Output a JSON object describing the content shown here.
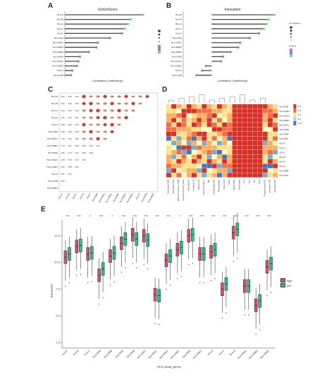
{
  "panels": {
    "A": {
      "letter": "A",
      "title": "EnrichScore",
      "xlabel": "Correlation Coefficient(r)"
    },
    "B": {
      "letter": "B",
      "title": "Innovation",
      "xlabel": "Correlation Coefficient(r)"
    },
    "C": {
      "letter": "C"
    },
    "D": {
      "letter": "D"
    },
    "E": {
      "letter": "E",
      "ylabel": "Expression",
      "xlabel": "HLA_family_genes"
    }
  },
  "legend_E": {
    "title": "",
    "items": [
      {
        "label": "high",
        "color": "#d9536b"
      },
      {
        "label": "low",
        "color": "#2bbf8f"
      }
    ]
  },
  "legend_AB": {
    "size_title": "Correlation",
    "p_title": "pvalue"
  },
  "colors": {
    "bar": "#4a4a4a",
    "tip_high": "#6ee06e",
    "tip_low": "#9a6ee0",
    "heat_high": "#d73027",
    "heat_mid": "#fee08b",
    "heat_low": "#4575b4"
  },
  "chart_data": [
    {
      "type": "bar",
      "panel": "A",
      "categories": [
        "HLA-E",
        "HLA-B",
        "HLA-A",
        "HLA-C",
        "HLA-F",
        "HLA-DRA",
        "HLA-DPA1",
        "HLA-DPB1",
        "HLA-DRB1",
        "HLA-DMA",
        "HLA-DQA1",
        "HLA-DQB1",
        "HLA-G",
        "HLA-DOB"
      ],
      "values": [
        0.52,
        0.44,
        0.42,
        0.4,
        0.38,
        0.3,
        0.22,
        0.21,
        0.16,
        0.1,
        0.09,
        0.08,
        0.05,
        0.04
      ],
      "xlim": [
        0,
        0.6
      ],
      "xticks": [
        "0.00",
        "0.25",
        "0.50"
      ]
    },
    {
      "type": "bar",
      "panel": "B",
      "categories": [
        "HLA-E",
        "HLA-B",
        "HLA-A",
        "HLA-C",
        "HLA-F",
        "HLA-DRA",
        "HLA-DPA1",
        "HLA-DPB1",
        "HLA-DRB1",
        "HLA-DMA",
        "HLA-DQA1",
        "HLA-DQB1",
        "HLA-G",
        "HLA-DOB"
      ],
      "values": [
        0.66,
        0.6,
        0.58,
        0.55,
        0.5,
        0.4,
        0.3,
        0.28,
        0.2,
        0.12,
        0.1,
        -0.06,
        -0.1,
        -0.16
      ],
      "xlim": [
        -0.3,
        0.8
      ],
      "xticks": [
        "-0.2",
        "0.0",
        "0.2",
        "0.4",
        "0.6"
      ]
    },
    {
      "type": "heatmap",
      "panel": "C",
      "rows": [
        "HLA-E",
        "HLA-B",
        "HLA-C",
        "HLA-A",
        "HLA-F",
        "HLA-DRA",
        "HLA-DPA1",
        "HLA-DRB1",
        "HLA-DMA",
        "HLA-DQA1",
        "HLA-DQB1",
        "HLA-G",
        "HLA-DOB",
        "HLA-DPB1"
      ],
      "cols": [
        "HLA-E",
        "HLA-B",
        "HLA-C",
        "HLA-A",
        "HLA-F",
        "HLA-DRA",
        "HLA-DPA1",
        "HLA-DRB1",
        "HLA-DMA",
        "HLA-DQA1",
        "HLA-DQB1",
        "HLA-G",
        "HLA-DOB",
        "HLA-DPB1"
      ],
      "note": "lower-triangular correlation matrix with circles"
    },
    {
      "type": "heatmap",
      "panel": "D",
      "rows": [
        "HLA-DOB",
        "HLA-DQB1",
        "HLA-DQA1",
        "HLA-DRB1",
        "HLA-DPA1",
        "HLA-DPB1",
        "HLA-DMA",
        "HLA-DRA",
        "HLA-F",
        "HLA-A",
        "HLA-C",
        "HLA-B",
        "HLA-E",
        "HLA-G",
        "HLA-DMB",
        "HLA-DOA"
      ],
      "cols": [
        "Activated CD8",
        "Activated CD4",
        "Effector memory CD8",
        "Central memory CD4",
        "Activated B",
        "Immature B",
        "Memory B",
        "Gamma delta T",
        "NK",
        "CD56bright NK",
        "Macrophage",
        "Monocyte",
        "Mast",
        "Neutrophil",
        "Eosinophil",
        "Th1",
        "Th2",
        "Tfh",
        "Treg",
        "Plasmacytoid DC",
        "Immature DC",
        "Activated DC"
      ],
      "legend_ticks": [
        "0.6",
        "0.4",
        "0.2",
        "0.0",
        "-0.2"
      ]
    },
    {
      "type": "box",
      "panel": "E",
      "categories": [
        "HLA-A",
        "HLA-B",
        "HLA-C",
        "HLA-DMA",
        "HLA-DMB",
        "HLA-DOA",
        "HLA-DOB",
        "HLA-DPA1",
        "HLA-DPB1",
        "HLA-DQA1",
        "HLA-DQB1",
        "HLA-DRA",
        "HLA-DRB1",
        "HLA-E",
        "HLA-F",
        "HLA-G",
        "HLA-DQA2",
        "HLA-DQB2",
        "HLA-DRB5"
      ],
      "significance": [
        "***",
        "***",
        "*",
        "***",
        "*",
        "***",
        "***",
        "***",
        "***",
        "***",
        "*",
        "***",
        "***",
        "***",
        "***",
        "***",
        "***",
        "***",
        "***"
      ],
      "series": [
        {
          "name": "high",
          "median": [
            10.5,
            11.5,
            10.8,
            8.8,
            10.6,
            11.8,
            12.6,
            12.5,
            7.0,
            10.2,
            11.2,
            12.5,
            10.8,
            11.0,
            7.5,
            12.8,
            7.8,
            6.0,
            9.6
          ]
        },
        {
          "name": "low",
          "median": [
            10.8,
            11.6,
            10.9,
            9.4,
            10.9,
            12.2,
            12.2,
            12.1,
            6.9,
            10.6,
            11.4,
            12.6,
            10.8,
            11.2,
            8.0,
            13.1,
            7.8,
            6.4,
            9.9
          ]
        }
      ],
      "ylim": [
        2,
        14
      ],
      "yticks": [
        "2.5",
        "5.0",
        "7.5",
        "10.0",
        "12.5"
      ]
    }
  ]
}
